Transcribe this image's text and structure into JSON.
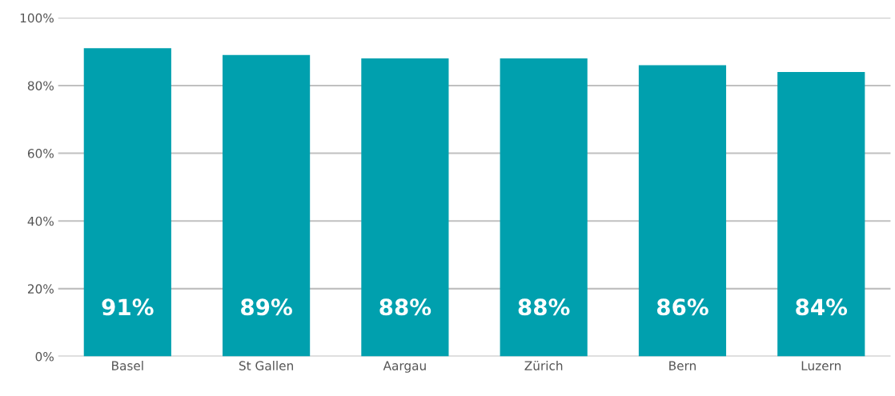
{
  "chart_data": {
    "type": "bar",
    "categories": [
      "Basel",
      "St Gallen",
      "Aargau",
      "Zürich",
      "Bern",
      "Luzern"
    ],
    "values": [
      91,
      89,
      88,
      88,
      86,
      84
    ],
    "value_labels": [
      "91%",
      "89%",
      "88%",
      "88%",
      "86%",
      "84%"
    ],
    "color": "#00a0ae",
    "ylim": [
      0,
      100
    ],
    "yticks": [
      {
        "value": 0,
        "label": "0%"
      },
      {
        "value": 20,
        "label": "20%"
      },
      {
        "value": 40,
        "label": "40%"
      },
      {
        "value": 60,
        "label": "60%"
      },
      {
        "value": 80,
        "label": "80%"
      },
      {
        "value": 100,
        "label": "100%"
      }
    ],
    "grid": "y",
    "legend": false
  }
}
